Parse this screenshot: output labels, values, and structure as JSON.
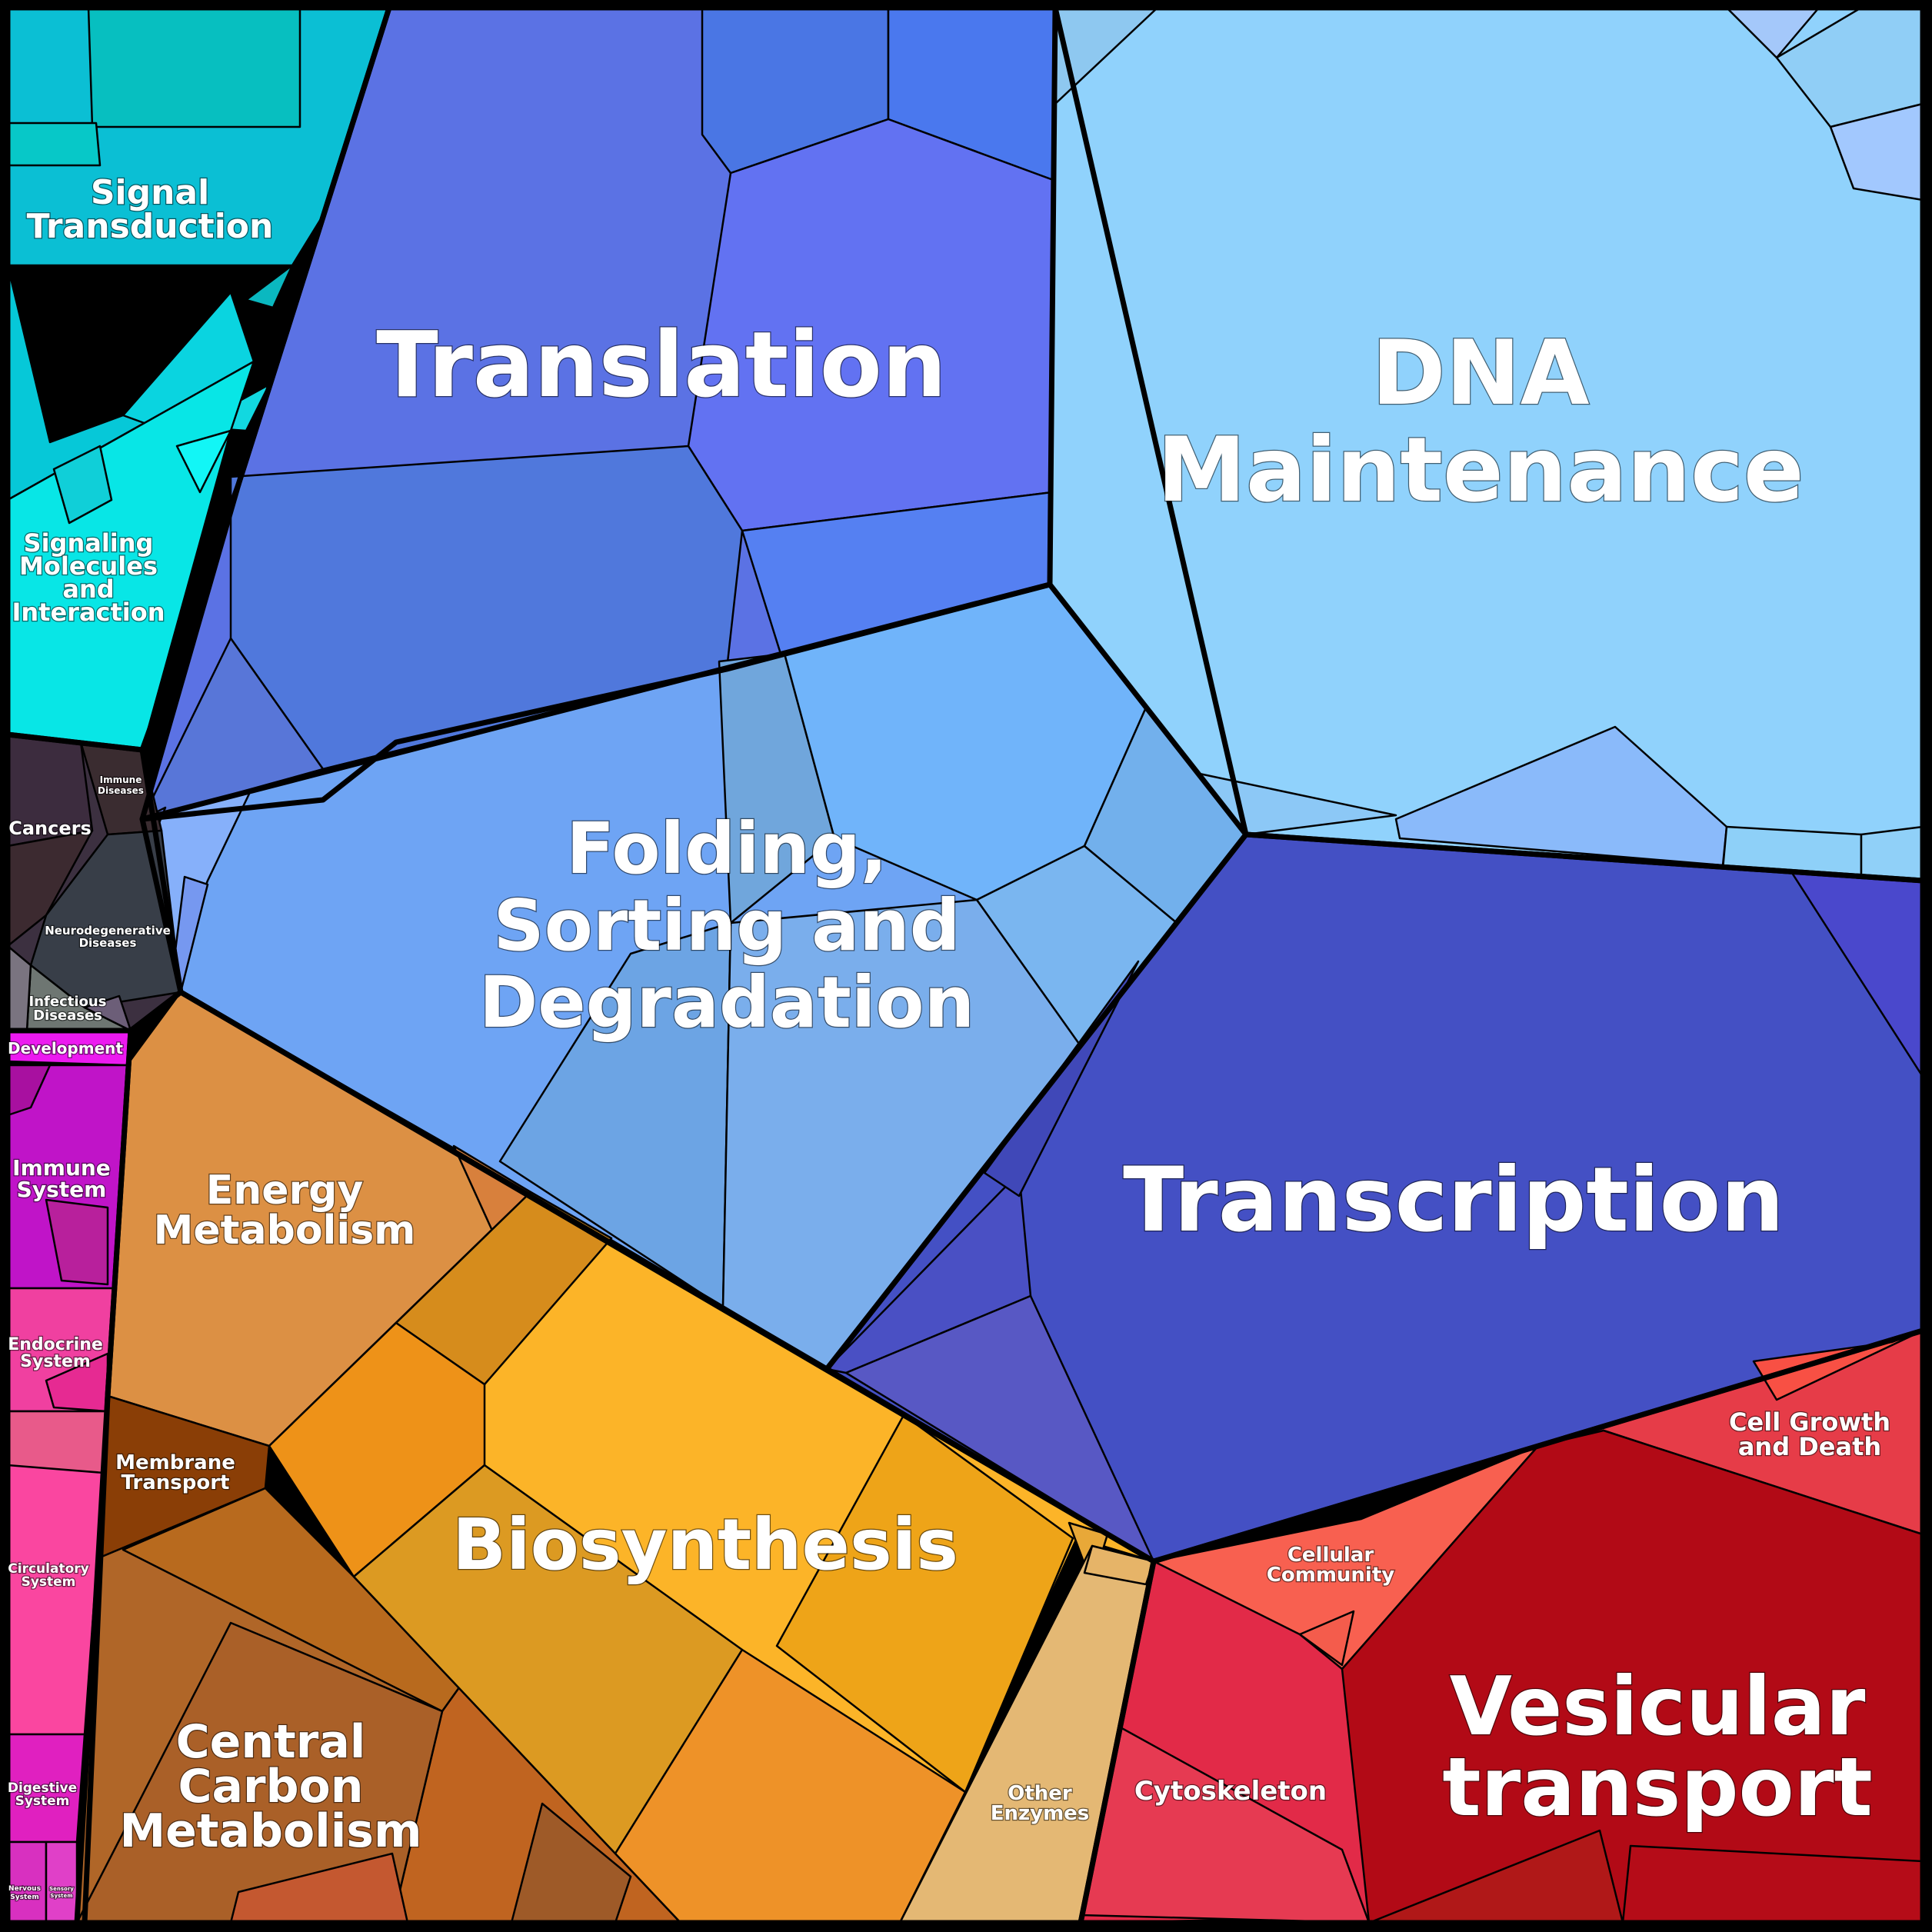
{
  "diagram": {
    "type": "voronoi-treemap",
    "categories": [
      {
        "id": "signal-transduction",
        "lines": [
          "Signal",
          "Transduction"
        ],
        "color": "#08c8d8"
      },
      {
        "id": "signaling-molecules",
        "lines": [
          "Signaling",
          "Molecules",
          "and",
          "Interaction"
        ],
        "color": "#08e8e8"
      },
      {
        "id": "translation",
        "lines": [
          "Translation"
        ],
        "color": "#5a72e4"
      },
      {
        "id": "dna-maintenance",
        "lines": [
          "DNA",
          "Maintenance"
        ],
        "color": "#90d2fc"
      },
      {
        "id": "folding",
        "lines": [
          "Folding,",
          "Sorting and",
          "Degradation"
        ],
        "color": "#70a8f4"
      },
      {
        "id": "transcription",
        "lines": [
          "Transcription"
        ],
        "color": "#4450c4"
      },
      {
        "id": "cancers",
        "lines": [
          "Cancers"
        ],
        "color": "#3a2a38"
      },
      {
        "id": "immune-diseases",
        "lines": [
          "Immune",
          "Diseases"
        ],
        "color": "#3a2c30"
      },
      {
        "id": "neurodegenerative",
        "lines": [
          "Neurodegenerative",
          "Diseases"
        ],
        "color": "#3a3e48"
      },
      {
        "id": "infectious",
        "lines": [
          "Infectious",
          "Diseases"
        ],
        "color": "#6e7672"
      },
      {
        "id": "development",
        "lines": [
          "Development"
        ],
        "color": "#ee18f0"
      },
      {
        "id": "immune-system",
        "lines": [
          "Immune",
          "System"
        ],
        "color": "#c012c8"
      },
      {
        "id": "endocrine",
        "lines": [
          "Endocrine",
          "System"
        ],
        "color": "#f040a0"
      },
      {
        "id": "circulatory",
        "lines": [
          "Circulatory",
          "System"
        ],
        "color": "#fa46a0"
      },
      {
        "id": "digestive",
        "lines": [
          "Digestive",
          "System"
        ],
        "color": "#e020c0"
      },
      {
        "id": "nervous",
        "lines": [
          "Nervous",
          "System"
        ],
        "color": "#d830c0"
      },
      {
        "id": "sensory",
        "lines": [
          "Sensory",
          "System"
        ],
        "color": "#e040c8"
      },
      {
        "id": "energy",
        "lines": [
          "Energy",
          "Metabolism"
        ],
        "color": "#dc9044"
      },
      {
        "id": "membrane",
        "lines": [
          "Membrane",
          "Transport"
        ],
        "color": "#8a3e06"
      },
      {
        "id": "central-carbon",
        "lines": [
          "Central",
          "Carbon",
          "Metabolism"
        ],
        "color": "#b06628"
      },
      {
        "id": "biosynthesis",
        "lines": [
          "Biosynthesis"
        ],
        "color": "#fcb428"
      },
      {
        "id": "other-enzymes",
        "lines": [
          "Other",
          "Enzymes"
        ],
        "color": "#e4b874"
      },
      {
        "id": "cytoskeleton",
        "lines": [
          "Cytoskeleton"
        ],
        "color": "#e22a48"
      },
      {
        "id": "cellular-community",
        "lines": [
          "Cellular",
          "Community"
        ],
        "color": "#f86050"
      },
      {
        "id": "cell-growth",
        "lines": [
          "Cell Growth",
          "and Death"
        ],
        "color": "#e63c48"
      },
      {
        "id": "vesicular",
        "lines": [
          "Vesicular",
          "transport"
        ],
        "color": "#b20a16"
      }
    ]
  }
}
